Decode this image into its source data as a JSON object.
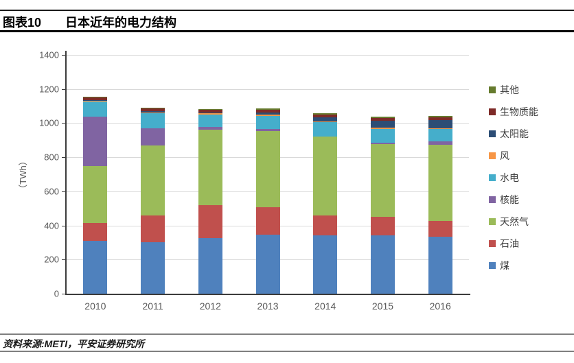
{
  "header": {
    "tag": "图表10",
    "title": "日本近年的电力结构"
  },
  "source": {
    "text": "资料来源:METI，平安证券研究所"
  },
  "chart_data": {
    "type": "bar",
    "stacked": true,
    "title": "日本近年的电力结构",
    "xlabel": "",
    "ylabel": "（TWh）",
    "ylim": [
      0,
      1400
    ],
    "yticks": [
      0,
      200,
      400,
      600,
      800,
      1000,
      1200,
      1400
    ],
    "grid": true,
    "legend_position": "right",
    "legend_note": "legend shown in reverse stacking order (top of stack first)",
    "categories": [
      "2010",
      "2011",
      "2012",
      "2013",
      "2014",
      "2015",
      "2016"
    ],
    "series": [
      {
        "name": "煤",
        "color": "#4F81BD",
        "values": [
          310,
          300,
          327,
          347,
          343,
          341,
          334
        ]
      },
      {
        "name": "石油",
        "color": "#C0504D",
        "values": [
          105,
          158,
          191,
          161,
          114,
          110,
          94
        ]
      },
      {
        "name": "天然气",
        "color": "#9BBB59",
        "values": [
          335,
          413,
          442,
          447,
          464,
          426,
          446
        ]
      },
      {
        "name": "核能",
        "color": "#8064A2",
        "values": [
          288,
          97,
          16,
          9,
          0,
          9,
          18
        ]
      },
      {
        "name": "水电",
        "color": "#45AECB",
        "values": [
          88,
          91,
          76,
          80,
          83,
          80,
          72
        ]
      },
      {
        "name": "风",
        "color": "#F79646",
        "values": [
          4,
          5,
          5,
          5,
          5,
          6,
          6
        ]
      },
      {
        "name": "太阳能",
        "color": "#2C4D75",
        "values": [
          4,
          5,
          7,
          14,
          24,
          42,
          50
        ]
      },
      {
        "name": "生物质能",
        "color": "#7E2B28",
        "values": [
          16,
          16,
          14,
          17,
          18,
          17,
          16
        ]
      },
      {
        "name": "其他",
        "color": "#667B2E",
        "values": [
          6,
          6,
          6,
          7,
          8,
          8,
          8
        ]
      }
    ]
  }
}
